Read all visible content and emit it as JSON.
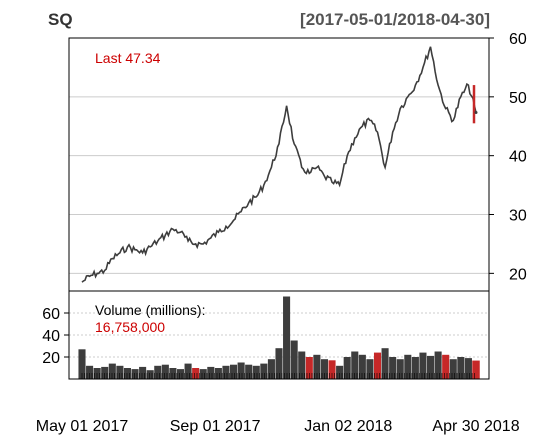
{
  "header": {
    "symbol": "SQ",
    "range": "[2017-05-01/2018-04-30]"
  },
  "price_panel": {
    "last_label": "Last 47.34"
  },
  "volume_panel": {
    "title": "Volume (millions):",
    "last_value": "16,758,000"
  },
  "colors": {
    "background": "#ffffff",
    "grid": "#cccccc",
    "bar_up": "#3d3d3d",
    "bar_down": "#c62828",
    "text_red": "#cc0000",
    "axis": "#000000"
  },
  "chart_data": [
    {
      "type": "line",
      "title": "SQ",
      "subtitle": "[2017-05-01/2018-04-30]",
      "ylim": [
        17,
        60
      ],
      "y_ticks": [
        20,
        30,
        40,
        50,
        60
      ],
      "y_tick_labels": [
        "20",
        "30",
        "40",
        "50",
        "60"
      ],
      "grid": true,
      "last_value": 47.34,
      "x_tick_labels": [
        "May 01 2017",
        "Sep 01 2017",
        "Jan 02 2018",
        "Apr 30 2018"
      ],
      "series": [
        {
          "x": [
            "2017-05-01",
            "2017-05-08",
            "2017-05-15",
            "2017-05-22",
            "2017-05-29",
            "2017-06-05",
            "2017-06-12",
            "2017-06-19",
            "2017-06-26",
            "2017-07-03",
            "2017-07-10",
            "2017-07-17",
            "2017-07-24",
            "2017-07-31",
            "2017-08-07",
            "2017-08-14",
            "2017-08-21",
            "2017-08-28",
            "2017-09-04",
            "2017-09-11",
            "2017-09-18",
            "2017-09-25",
            "2017-10-02",
            "2017-10-09",
            "2017-10-16",
            "2017-10-23",
            "2017-10-30",
            "2017-11-06",
            "2017-11-13",
            "2017-11-20",
            "2017-11-27",
            "2017-12-04",
            "2017-12-11",
            "2017-12-18",
            "2017-12-25",
            "2018-01-01",
            "2018-01-08",
            "2018-01-15",
            "2018-01-22",
            "2018-01-29",
            "2018-02-05",
            "2018-02-12",
            "2018-02-19",
            "2018-02-26",
            "2018-03-05",
            "2018-03-12",
            "2018-03-19",
            "2018-03-26",
            "2018-04-02",
            "2018-04-09",
            "2018-04-16",
            "2018-04-23",
            "2018-04-30"
          ],
          "values": [
            18.5,
            19.5,
            20.0,
            20.5,
            22.5,
            23.5,
            24.5,
            24.0,
            23.5,
            24.5,
            25.5,
            26.5,
            27.5,
            27.0,
            25.5,
            25.0,
            25.0,
            26.0,
            27.0,
            28.0,
            29.0,
            30.5,
            32.0,
            33.0,
            35.0,
            38.0,
            42.0,
            48.5,
            42.0,
            38.0,
            37.0,
            38.0,
            36.5,
            35.5,
            35.0,
            40.0,
            43.0,
            45.0,
            46.0,
            44.0,
            38.0,
            44.0,
            48.0,
            50.0,
            52.0,
            55.0,
            58.5,
            52.0,
            48.0,
            46.0,
            50.0,
            52.0,
            47.34
          ]
        }
      ]
    },
    {
      "type": "bar",
      "title": "Volume (millions):",
      "ylim": [
        0,
        80
      ],
      "y_ticks": [
        20,
        40,
        60
      ],
      "y_tick_labels": [
        "20",
        "40",
        "60"
      ],
      "last_value": 16758000,
      "series": [
        {
          "name": "Volume (millions)",
          "x": [
            "2017-05-01",
            "2017-05-08",
            "2017-05-15",
            "2017-05-22",
            "2017-05-29",
            "2017-06-05",
            "2017-06-12",
            "2017-06-19",
            "2017-06-26",
            "2017-07-03",
            "2017-07-10",
            "2017-07-17",
            "2017-07-24",
            "2017-07-31",
            "2017-08-07",
            "2017-08-14",
            "2017-08-21",
            "2017-08-28",
            "2017-09-04",
            "2017-09-11",
            "2017-09-18",
            "2017-09-25",
            "2017-10-02",
            "2017-10-09",
            "2017-10-16",
            "2017-10-23",
            "2017-10-30",
            "2017-11-06",
            "2017-11-13",
            "2017-11-20",
            "2017-11-27",
            "2017-12-04",
            "2017-12-11",
            "2017-12-18",
            "2017-12-25",
            "2018-01-01",
            "2018-01-08",
            "2018-01-15",
            "2018-01-22",
            "2018-01-29",
            "2018-02-05",
            "2018-02-12",
            "2018-02-19",
            "2018-02-26",
            "2018-03-05",
            "2018-03-12",
            "2018-03-19",
            "2018-03-26",
            "2018-04-02",
            "2018-04-09",
            "2018-04-16",
            "2018-04-23",
            "2018-04-30"
          ],
          "values": [
            27,
            12,
            10,
            11,
            14,
            12,
            10,
            9,
            11,
            8,
            12,
            13,
            10,
            9,
            14,
            10,
            9,
            11,
            10,
            12,
            13,
            15,
            13,
            12,
            14,
            18,
            28,
            75,
            35,
            25,
            20,
            22,
            18,
            17,
            12,
            20,
            25,
            22,
            18,
            24,
            28,
            20,
            18,
            22,
            20,
            24,
            21,
            25,
            22,
            18,
            20,
            19,
            16.758
          ]
        }
      ]
    }
  ]
}
